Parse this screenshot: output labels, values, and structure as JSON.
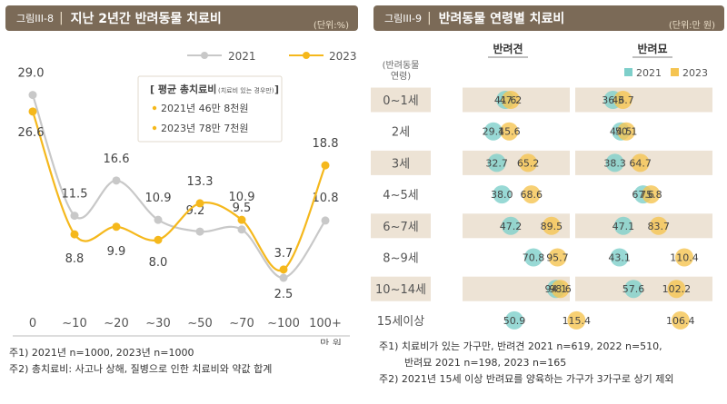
{
  "left": {
    "figure_label": "그림III-8",
    "title": "지난 2년간 반려동물 치료비",
    "unit": "(단위:%)",
    "x_unit": "만 원",
    "summary_box": {
      "header": "[ 평균 총치료비",
      "header_note": "(치료비 있는 경우만)",
      "header_close": "]",
      "rows": [
        "2021년 46만 8천원",
        "2023년 78만 7천원"
      ]
    },
    "notes": [
      "주1) 2021년 n=1000, 2023년 n=1000",
      "주2) 총치료비: 사고나 상해, 질병으로 인한 치료비와 약값 합계"
    ]
  },
  "right": {
    "figure_label": "그림III-9",
    "title": "반려동물 연령별 치료비",
    "unit": "(단위:만 원)",
    "row_header": [
      "(반려동물",
      "연령)"
    ],
    "notes": [
      "주1) 치료비가 있는 가구만, 반려견 2021 n=619, 2022 n=510,",
      "반려묘 2021 n=198, 2023 n=165",
      "주2) 2021년 15세 이상 반려묘를 양육하는 가구가 3가구로 상기 제외"
    ]
  },
  "chart_data": [
    {
      "type": "line",
      "categories": [
        "0",
        "~10",
        "~20",
        "~30",
        "~50",
        "~70",
        "~100",
        "100+"
      ],
      "series": [
        {
          "name": "2021",
          "color": "#c8c8c8",
          "values": [
            29.0,
            11.5,
            16.6,
            10.9,
            9.2,
            9.5,
            2.5,
            10.8
          ]
        },
        {
          "name": "2023",
          "color": "#f5b81c",
          "values": [
            26.6,
            8.8,
            9.9,
            8.0,
            13.3,
            10.9,
            3.7,
            18.8
          ]
        }
      ],
      "labels": [
        [
          "29.0",
          "11.5",
          "16.6",
          "10.9",
          "9.2",
          "9.5",
          "2.5",
          "10.8"
        ],
        [
          "26.6",
          "8.8",
          "9.9",
          "8.0",
          "13.3",
          "10.9",
          "3.7",
          "18.8"
        ]
      ],
      "legend_position": "top-right",
      "ylim": [
        0,
        32
      ]
    },
    {
      "type": "dot",
      "categories": [
        "0~1세",
        "2세",
        "3세",
        "4~5세",
        "6~7세",
        "8~9세",
        "10~14세",
        "15세이상"
      ],
      "groups": [
        {
          "name": "반려견",
          "series": [
            {
              "name": "2021",
              "color": "#7ecfca",
              "values": [
                41.6,
                29.1,
                32.7,
                38.0,
                47.2,
                70.8,
                94.1,
                50.9
              ]
            },
            {
              "name": "2023",
              "color": "#f5c451",
              "values": [
                47.2,
                45.6,
                65.2,
                68.6,
                89.5,
                95.7,
                98.6,
                115.4
              ]
            }
          ]
        },
        {
          "name": "반려묘",
          "series": [
            {
              "name": "2021",
              "color": "#7ecfca",
              "values": [
                36.3,
                44.5,
                38.3,
                67.6,
                47.1,
                43.1,
                57.6,
                null
              ]
            },
            {
              "name": "2023",
              "color": "#f5c451",
              "values": [
                46.7,
                50.1,
                64.7,
                75.8,
                83.7,
                110.4,
                102.2,
                106.4
              ]
            }
          ]
        }
      ],
      "labels": {
        "반려견": {
          "2021": [
            "41.6",
            "29.1",
            "32.7",
            "38.0",
            "47.2",
            "70.8",
            "94.1",
            "50.9"
          ],
          "2023": [
            "47.2",
            "45.6",
            "65.2",
            "68.6",
            "89.5",
            "95.7",
            "98.6",
            "115.4"
          ]
        },
        "반려묘": {
          "2021": [
            "36.3",
            "44.5",
            "38.3",
            "67.6",
            "47.1",
            "43.1",
            "57.6",
            null
          ],
          "2023": [
            "46.7",
            "50.1",
            "64.7",
            "75.8",
            "83.7",
            "110.4",
            "102.2",
            "106.4"
          ]
        }
      },
      "legend_position": "top-right",
      "xlim": [
        0,
        120
      ],
      "row_shading": "alternate"
    }
  ]
}
